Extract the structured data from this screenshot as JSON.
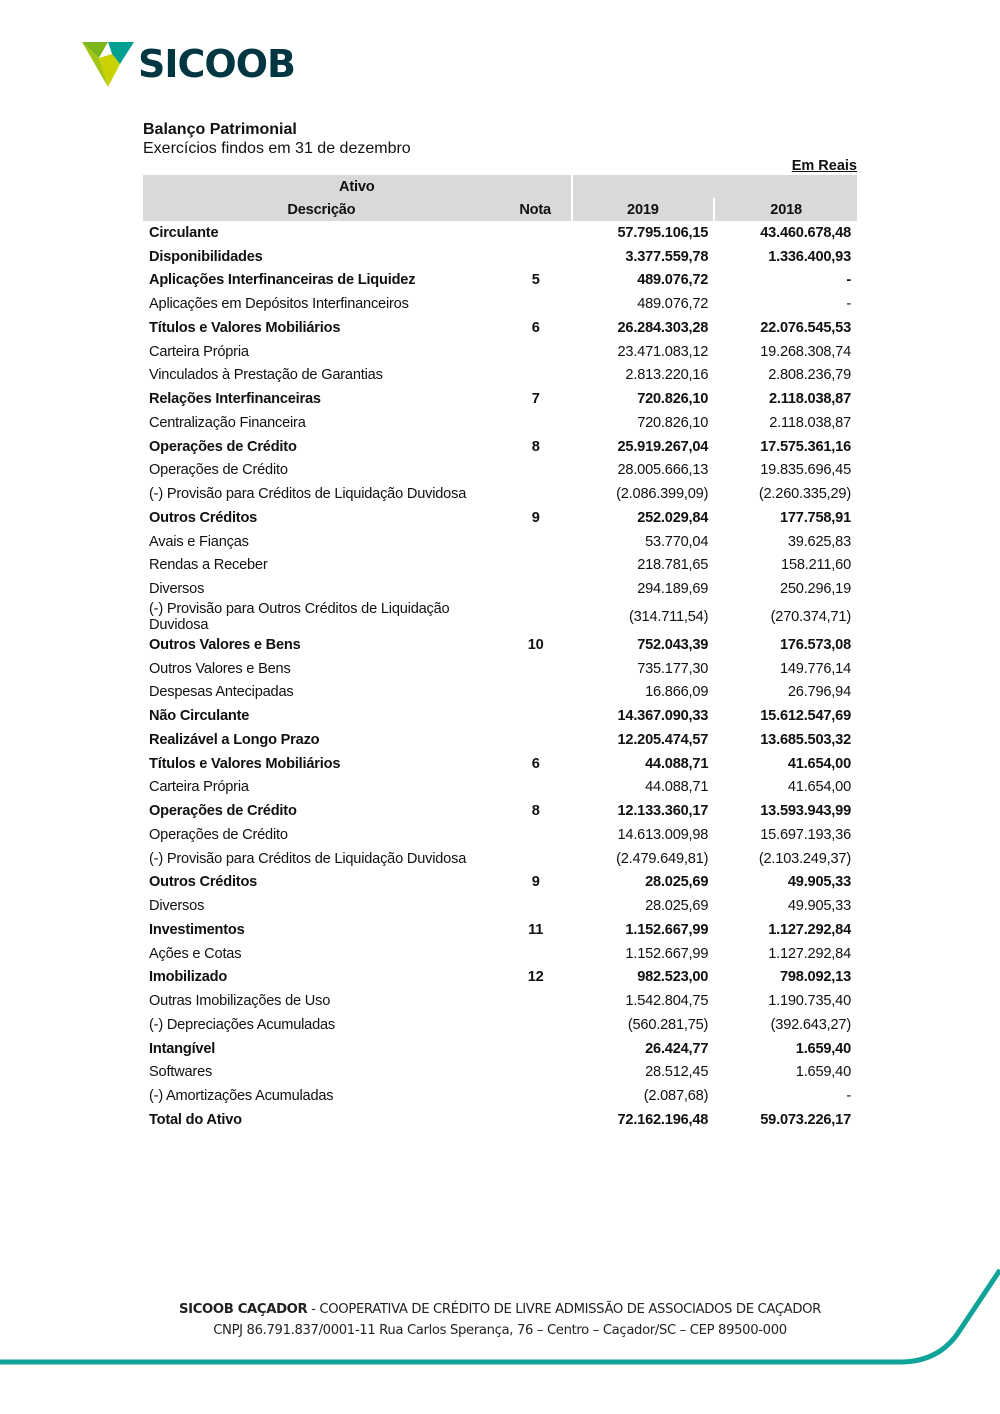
{
  "logo": {
    "text": "SICOOB",
    "colors": {
      "teal": "#00a091",
      "green": "#7db61c",
      "lime": "#c9d200",
      "dark": "#003641"
    }
  },
  "header": {
    "title": "Balanço Patrimonial",
    "subtitle": "Exercícios findos em 31 de dezembro",
    "unit": "Em Reais"
  },
  "table": {
    "section": "Ativo",
    "columns": [
      "Descrição",
      "Nota",
      "2019",
      "2018"
    ],
    "rows": [
      {
        "desc": "Circulante",
        "nota": "",
        "v2019": "57.795.106,15",
        "v2018": "43.460.678,48",
        "bold": true
      },
      {
        "desc": "Disponibilidades",
        "nota": "",
        "v2019": "3.377.559,78",
        "v2018": "1.336.400,93",
        "bold": true
      },
      {
        "desc": "Aplicações Interfinanceiras de Liquidez",
        "nota": "5",
        "v2019": "489.076,72",
        "v2018": "-",
        "bold": true
      },
      {
        "desc": "Aplicações em Depósitos Interfinanceiros",
        "nota": "",
        "v2019": "489.076,72",
        "v2018": "-",
        "bold": false
      },
      {
        "desc": "Títulos e Valores Mobiliários",
        "nota": "6",
        "v2019": "26.284.303,28",
        "v2018": "22.076.545,53",
        "bold": true
      },
      {
        "desc": "Carteira Própria",
        "nota": "",
        "v2019": "23.471.083,12",
        "v2018": "19.268.308,74",
        "bold": false
      },
      {
        "desc": "Vinculados à Prestação de Garantias",
        "nota": "",
        "v2019": "2.813.220,16",
        "v2018": "2.808.236,79",
        "bold": false
      },
      {
        "desc": "Relações Interfinanceiras",
        "nota": "7",
        "v2019": "720.826,10",
        "v2018": "2.118.038,87",
        "bold": true
      },
      {
        "desc": "Centralização Financeira",
        "nota": "",
        "v2019": "720.826,10",
        "v2018": "2.118.038,87",
        "bold": false
      },
      {
        "desc": "Operações de Crédito",
        "nota": "8",
        "v2019": "25.919.267,04",
        "v2018": "17.575.361,16",
        "bold": true
      },
      {
        "desc": "Operações de Crédito",
        "nota": "",
        "v2019": "28.005.666,13",
        "v2018": "19.835.696,45",
        "bold": false
      },
      {
        "desc": "(-) Provisão para Créditos de Liquidação Duvidosa",
        "nota": "",
        "v2019": "(2.086.399,09)",
        "v2018": "(2.260.335,29)",
        "bold": false
      },
      {
        "desc": "Outros Créditos",
        "nota": "9",
        "v2019": "252.029,84",
        "v2018": "177.758,91",
        "bold": true
      },
      {
        "desc": "Avais e Fianças",
        "nota": "",
        "v2019": "53.770,04",
        "v2018": "39.625,83",
        "bold": false
      },
      {
        "desc": "Rendas a Receber",
        "nota": "",
        "v2019": "218.781,65",
        "v2018": "158.211,60",
        "bold": false
      },
      {
        "desc": "Diversos",
        "nota": "",
        "v2019": "294.189,69",
        "v2018": "250.296,19",
        "bold": false
      },
      {
        "desc": "(-) Provisão para Outros Créditos de Liquidação Duvidosa",
        "nota": "",
        "v2019": "(314.711,54)",
        "v2018": "(270.374,71)",
        "bold": false,
        "wrap": true
      },
      {
        "desc": "Outros Valores e Bens",
        "nota": "10",
        "v2019": "752.043,39",
        "v2018": "176.573,08",
        "bold": true
      },
      {
        "desc": "Outros Valores e Bens",
        "nota": "",
        "v2019": "735.177,30",
        "v2018": "149.776,14",
        "bold": false
      },
      {
        "desc": "Despesas Antecipadas",
        "nota": "",
        "v2019": "16.866,09",
        "v2018": "26.796,94",
        "bold": false
      },
      {
        "desc": "Não Circulante",
        "nota": "",
        "v2019": "14.367.090,33",
        "v2018": "15.612.547,69",
        "bold": true
      },
      {
        "desc": "Realizável a Longo Prazo",
        "nota": "",
        "v2019": "12.205.474,57",
        "v2018": "13.685.503,32",
        "bold": true
      },
      {
        "desc": "Títulos e Valores Mobiliários",
        "nota": "6",
        "v2019": "44.088,71",
        "v2018": "41.654,00",
        "bold": true
      },
      {
        "desc": "Carteira Própria",
        "nota": "",
        "v2019": "44.088,71",
        "v2018": "41.654,00",
        "bold": false
      },
      {
        "desc": "Operações de Crédito",
        "nota": "8",
        "v2019": "12.133.360,17",
        "v2018": "13.593.943,99",
        "bold": true
      },
      {
        "desc": "Operações de Crédito",
        "nota": "",
        "v2019": "14.613.009,98",
        "v2018": "15.697.193,36",
        "bold": false
      },
      {
        "desc": "(-) Provisão para Créditos de Liquidação Duvidosa",
        "nota": "",
        "v2019": "(2.479.649,81)",
        "v2018": "(2.103.249,37)",
        "bold": false
      },
      {
        "desc": "Outros Créditos",
        "nota": "9",
        "v2019": "28.025,69",
        "v2018": "49.905,33",
        "bold": true
      },
      {
        "desc": "Diversos",
        "nota": "",
        "v2019": "28.025,69",
        "v2018": "49.905,33",
        "bold": false
      },
      {
        "desc": "Investimentos",
        "nota": "11",
        "v2019": "1.152.667,99",
        "v2018": "1.127.292,84",
        "bold": true
      },
      {
        "desc": "Ações e Cotas",
        "nota": "",
        "v2019": "1.152.667,99",
        "v2018": "1.127.292,84",
        "bold": false
      },
      {
        "desc": "Imobilizado",
        "nota": "12",
        "v2019": "982.523,00",
        "v2018": "798.092,13",
        "bold": true
      },
      {
        "desc": "Outras Imobilizações de Uso",
        "nota": "",
        "v2019": "1.542.804,75",
        "v2018": "1.190.735,40",
        "bold": false
      },
      {
        "desc": "(-) Depreciações Acumuladas",
        "nota": "",
        "v2019": "(560.281,75)",
        "v2018": "(392.643,27)",
        "bold": false
      },
      {
        "desc": "Intangível",
        "nota": "",
        "v2019": "26.424,77",
        "v2018": "1.659,40",
        "bold": true
      },
      {
        "desc": "Softwares",
        "nota": "",
        "v2019": "28.512,45",
        "v2018": "1.659,40",
        "bold": false
      },
      {
        "desc": "(-) Amortizações Acumuladas",
        "nota": "",
        "v2019": "(2.087,68)",
        "v2018": "-",
        "bold": false
      },
      {
        "desc": "Total do Ativo",
        "nota": "",
        "v2019": "72.162.196,48",
        "v2018": "59.073.226,17",
        "bold": true
      }
    ]
  },
  "footer": {
    "org_name": "SICOOB CAÇADOR",
    "org_full": " - COOPERATIVA DE CRÉDITO DE LIVRE ADMISSÃO DE ASSOCIADOS DE CAÇADOR",
    "address": "CNPJ 86.791.837/0001-11 Rua Carlos Sperança, 76 – Centro – Caçador/SC – CEP 89500-000",
    "accent_color": "#0fa39a"
  }
}
